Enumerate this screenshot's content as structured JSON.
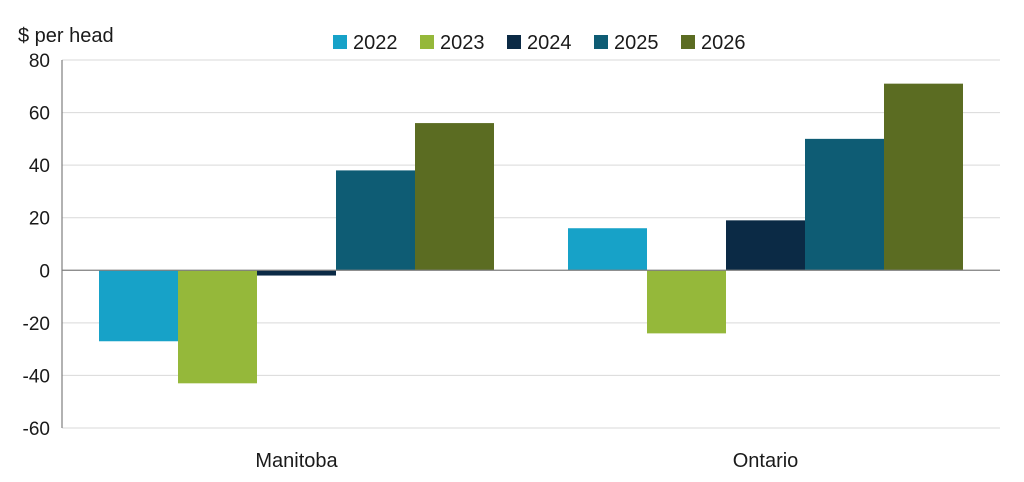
{
  "chart_data": {
    "type": "bar",
    "title": "",
    "ylabel": "$ per head",
    "xlabel": "",
    "categories": [
      "Manitoba",
      "Ontario"
    ],
    "ylim": [
      -60,
      80
    ],
    "yticks": [
      80,
      60,
      40,
      20,
      0,
      -20,
      -40,
      -60
    ],
    "grid": true,
    "legend_position": "top",
    "series": [
      {
        "name": "2022",
        "color": "#17a2c8",
        "values": [
          -27,
          16
        ]
      },
      {
        "name": "2023",
        "color": "#95b83a",
        "values": [
          -43,
          -24
        ]
      },
      {
        "name": "2024",
        "color": "#0b2a45",
        "values": [
          -2,
          19
        ]
      },
      {
        "name": "2025",
        "color": "#0e5c74",
        "values": [
          38,
          50
        ]
      },
      {
        "name": "2026",
        "color": "#5b6c22",
        "values": [
          56,
          71
        ]
      }
    ]
  }
}
